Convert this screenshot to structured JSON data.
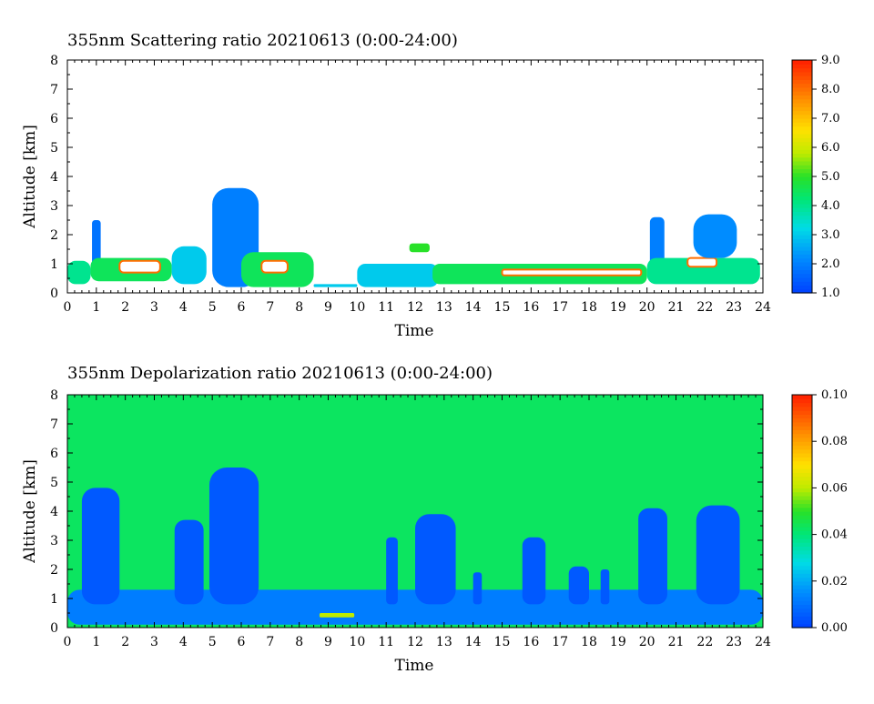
{
  "charts": [
    {
      "id": "sr",
      "title": "355nm Scattering ratio  20210613 (0:00-24:00)",
      "xlabel": "Time",
      "ylabel": "Altitude [km]",
      "colorbar_ticks": [
        "1.0",
        "2.0",
        "3.0",
        "4.0",
        "5.0",
        "6.0",
        "7.0",
        "8.0",
        "9.0"
      ]
    },
    {
      "id": "dr",
      "title": "355nm Depolarization ratio  20210613 (0:00-24:00)",
      "xlabel": "Time",
      "ylabel": "Altitude [km]",
      "colorbar_ticks": [
        "0.00",
        "0.02",
        "0.04",
        "0.06",
        "0.08",
        "0.10"
      ]
    }
  ],
  "x_ticks": [
    "0",
    "1",
    "2",
    "3",
    "4",
    "5",
    "6",
    "7",
    "8",
    "9",
    "10",
    "11",
    "12",
    "13",
    "14",
    "15",
    "16",
    "17",
    "18",
    "19",
    "20",
    "21",
    "22",
    "23",
    "24"
  ],
  "y_ticks": [
    "0",
    "1",
    "2",
    "3",
    "4",
    "5",
    "6",
    "7",
    "8"
  ],
  "chart_data": [
    {
      "type": "heatmap",
      "title": "355nm Scattering ratio  20210613 (0:00-24:00)",
      "xlabel": "Time",
      "ylabel": "Altitude [km]",
      "xlim": [
        0,
        24
      ],
      "ylim": [
        0,
        8
      ],
      "colorbar": {
        "min": 1.0,
        "max": 9.0,
        "ticks": [
          1.0,
          2.0,
          3.0,
          4.0,
          5.0,
          6.0,
          7.0,
          8.0,
          9.0
        ]
      },
      "features": [
        {
          "t0": 0.0,
          "t1": 0.8,
          "z0": 0.3,
          "z1": 1.1,
          "value": 4.0
        },
        {
          "t0": 0.85,
          "t1": 1.15,
          "z0": 0.6,
          "z1": 2.5,
          "value": 1.8
        },
        {
          "t0": 0.8,
          "t1": 3.6,
          "z0": 0.4,
          "z1": 1.2,
          "value": 4.5
        },
        {
          "t0": 1.8,
          "t1": 3.2,
          "z0": 0.7,
          "z1": 1.1,
          "value": 9.0
        },
        {
          "t0": 3.6,
          "t1": 4.8,
          "z0": 0.3,
          "z1": 1.6,
          "value": 3.0
        },
        {
          "t0": 5.0,
          "t1": 6.6,
          "z0": 0.2,
          "z1": 3.6,
          "value": 2.0
        },
        {
          "t0": 6.0,
          "t1": 8.5,
          "z0": 0.2,
          "z1": 1.4,
          "value": 4.5
        },
        {
          "t0": 6.7,
          "t1": 7.6,
          "z0": 0.7,
          "z1": 1.1,
          "value": 9.0
        },
        {
          "t0": 8.5,
          "t1": 10.0,
          "z0": 0.2,
          "z1": 0.3,
          "value": 3.0
        },
        {
          "t0": 10.0,
          "t1": 12.8,
          "z0": 0.2,
          "z1": 1.0,
          "value": 3.0
        },
        {
          "t0": 11.8,
          "t1": 12.5,
          "z0": 1.4,
          "z1": 1.7,
          "value": 5.0
        },
        {
          "t0": 12.6,
          "t1": 20.0,
          "z0": 0.3,
          "z1": 1.0,
          "value": 4.5
        },
        {
          "t0": 15.0,
          "t1": 19.8,
          "z0": 0.6,
          "z1": 0.8,
          "value": 9.0
        },
        {
          "t0": 20.1,
          "t1": 20.6,
          "z0": 0.8,
          "z1": 2.6,
          "value": 2.0
        },
        {
          "t0": 20.0,
          "t1": 23.9,
          "z0": 0.3,
          "z1": 1.2,
          "value": 4.0
        },
        {
          "t0": 21.4,
          "t1": 22.4,
          "z0": 0.9,
          "z1": 1.2,
          "value": 9.0
        },
        {
          "t0": 21.6,
          "t1": 23.1,
          "z0": 1.2,
          "z1": 2.7,
          "value": 2.2
        }
      ]
    },
    {
      "type": "heatmap",
      "title": "355nm Depolarization ratio  20210613 (0:00-24:00)",
      "xlabel": "Time",
      "ylabel": "Altitude [km]",
      "xlim": [
        0,
        24
      ],
      "ylim": [
        0,
        8
      ],
      "colorbar": {
        "min": 0.0,
        "max": 0.1,
        "ticks": [
          0.0,
          0.02,
          0.04,
          0.06,
          0.08,
          0.1
        ]
      },
      "background_value": 0.043,
      "features": [
        {
          "t0": 0.0,
          "t1": 24.0,
          "z0": 0.1,
          "z1": 1.3,
          "value": 0.012
        },
        {
          "t0": 0.5,
          "t1": 1.8,
          "z0": 0.8,
          "z1": 4.8,
          "value": 0.005
        },
        {
          "t0": 3.7,
          "t1": 4.7,
          "z0": 0.8,
          "z1": 3.7,
          "value": 0.005
        },
        {
          "t0": 4.9,
          "t1": 6.6,
          "z0": 0.8,
          "z1": 5.5,
          "value": 0.005
        },
        {
          "t0": 8.7,
          "t1": 9.9,
          "z0": 0.35,
          "z1": 0.5,
          "value": 0.06
        },
        {
          "t0": 11.0,
          "t1": 11.4,
          "z0": 0.8,
          "z1": 3.1,
          "value": 0.005
        },
        {
          "t0": 12.0,
          "t1": 13.4,
          "z0": 0.8,
          "z1": 3.9,
          "value": 0.005
        },
        {
          "t0": 14.0,
          "t1": 14.3,
          "z0": 0.8,
          "z1": 1.9,
          "value": 0.005
        },
        {
          "t0": 15.7,
          "t1": 16.5,
          "z0": 0.8,
          "z1": 3.1,
          "value": 0.005
        },
        {
          "t0": 17.3,
          "t1": 18.0,
          "z0": 0.8,
          "z1": 2.1,
          "value": 0.005
        },
        {
          "t0": 18.4,
          "t1": 18.7,
          "z0": 0.8,
          "z1": 2.0,
          "value": 0.005
        },
        {
          "t0": 19.7,
          "t1": 20.7,
          "z0": 0.8,
          "z1": 4.1,
          "value": 0.005
        },
        {
          "t0": 21.7,
          "t1": 23.2,
          "z0": 0.8,
          "z1": 4.2,
          "value": 0.005
        }
      ]
    }
  ]
}
